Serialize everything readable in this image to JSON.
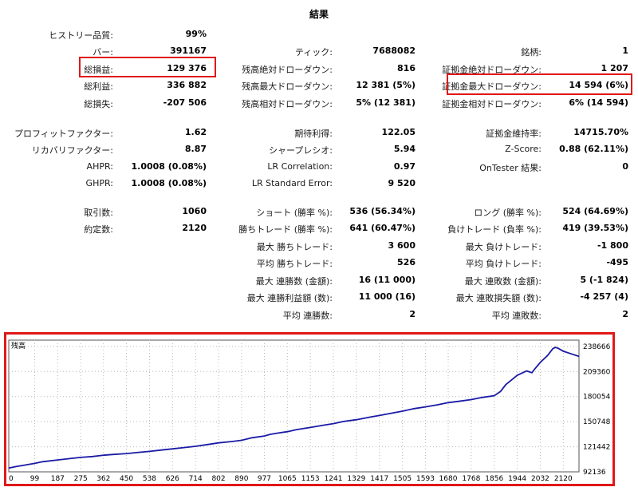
{
  "title": "結果",
  "col1": [
    {
      "key": "history_quality",
      "label": "ヒストリー品質:",
      "value": "99%"
    },
    {
      "key": "bars",
      "label": "バー:",
      "value": "391167"
    },
    {
      "key": "total_net_profit",
      "label": "総損益:",
      "value": "129 376"
    },
    {
      "key": "gross_profit",
      "label": "総利益:",
      "value": "336 882"
    },
    {
      "key": "gross_loss",
      "label": "総損失:",
      "value": "-207 506"
    },
    {
      "key": "profit_factor",
      "label": "プロフィットファクター:",
      "value": "1.62"
    },
    {
      "key": "recovery_factor",
      "label": "リカバリファクター:",
      "value": "8.87"
    },
    {
      "key": "ahpr",
      "label": "AHPR:",
      "value": "1.0008 (0.08%)"
    },
    {
      "key": "ghpr",
      "label": "GHPR:",
      "value": "1.0008 (0.08%)"
    },
    {
      "key": "total_trades",
      "label": "取引数:",
      "value": "1060"
    },
    {
      "key": "total_deals",
      "label": "約定数:",
      "value": "2120"
    }
  ],
  "col2": [
    {
      "key": "ticks",
      "label": "ティック:",
      "value": "7688082"
    },
    {
      "key": "balance_dd_abs",
      "label": "残高絶対ドローダウン:",
      "value": "816"
    },
    {
      "key": "balance_dd_max",
      "label": "残高最大ドローダウン:",
      "value": "12 381 (5%)"
    },
    {
      "key": "balance_dd_rel",
      "label": "残高相対ドローダウン:",
      "value": "5% (12 381)"
    },
    {
      "key": "expected_payoff",
      "label": "期待利得:",
      "value": "122.05"
    },
    {
      "key": "sharpe",
      "label": "シャープレシオ:",
      "value": "5.94"
    },
    {
      "key": "lr_corr",
      "label": "LR Correlation:",
      "value": "0.97"
    },
    {
      "key": "lr_err",
      "label": "LR Standard Error:",
      "value": "9 520"
    },
    {
      "key": "short_trades",
      "label": "ショート (勝率 %):",
      "value": "536 (56.34%)"
    },
    {
      "key": "profit_trades",
      "label": "勝ちトレード (勝率 %):",
      "value": "641 (60.47%)"
    },
    {
      "key": "largest_profit",
      "label": "最大 勝ちトレード:",
      "value": "3 600"
    },
    {
      "key": "avg_profit",
      "label": "平均 勝ちトレード:",
      "value": "526"
    },
    {
      "key": "max_consec_wins",
      "label": "最大 連勝数 (金額):",
      "value": "16 (11 000)"
    },
    {
      "key": "max_consec_profit",
      "label": "最大 連勝利益額 (数):",
      "value": "11 000 (16)"
    },
    {
      "key": "avg_consec_wins",
      "label": "平均 連勝数:",
      "value": "2"
    }
  ],
  "col3": [
    {
      "key": "symbols",
      "label": "銘柄:",
      "value": "1"
    },
    {
      "key": "equity_dd_abs",
      "label": "証拠金絶対ドローダウン:",
      "value": "1 207"
    },
    {
      "key": "equity_dd_max",
      "label": "証拠金最大ドローダウン:",
      "value": "14 594 (6%)"
    },
    {
      "key": "equity_dd_rel",
      "label": "証拠金相対ドローダウン:",
      "value": "6% (14 594)"
    },
    {
      "key": "margin_level",
      "label": "証拠金維持率:",
      "value": "14715.70%"
    },
    {
      "key": "z_score",
      "label": "Z-Score:",
      "value": "0.88 (62.11%)"
    },
    {
      "key": "ontester",
      "label": "OnTester 結果:",
      "value": "0"
    },
    {
      "key": "long_trades",
      "label": "ロング (勝率 %):",
      "value": "524 (64.69%)"
    },
    {
      "key": "loss_trades",
      "label": "負けトレード (負率 %):",
      "value": "419 (39.53%)"
    },
    {
      "key": "largest_loss",
      "label": "最大 負けトレード:",
      "value": "-1 800"
    },
    {
      "key": "avg_loss",
      "label": "平均 負けトレード:",
      "value": "-495"
    },
    {
      "key": "max_consec_losses",
      "label": "最大 連敗数 (金額):",
      "value": "5 (-1 824)"
    },
    {
      "key": "max_consec_loss",
      "label": "最大 連敗損失額 (数):",
      "value": "-4 257 (4)"
    },
    {
      "key": "avg_consec_losses",
      "label": "平均 連敗数:",
      "value": "2"
    }
  ],
  "colors": {
    "highlight": "#e01818",
    "line": "#1a1aa6",
    "grid": "#b8b8b8"
  },
  "chart_data": {
    "type": "line",
    "legend": "残高",
    "series": [
      {
        "name": "残高",
        "x": [
          0,
          30,
          60,
          99,
          130,
          187,
          230,
          275,
          320,
          362,
          400,
          450,
          500,
          538,
          580,
          626,
          670,
          714,
          760,
          802,
          850,
          890,
          930,
          977,
          1000,
          1030,
          1065,
          1100,
          1153,
          1200,
          1241,
          1280,
          1329,
          1380,
          1417,
          1460,
          1505,
          1550,
          1593,
          1640,
          1680,
          1720,
          1768,
          1810,
          1856,
          1880,
          1900,
          1944,
          1980,
          2000,
          2010,
          2032,
          2060,
          2080,
          2090,
          2100,
          2120,
          2150,
          2180
        ],
        "y": [
          96600,
          98500,
          100000,
          102000,
          104000,
          106000,
          107500,
          109000,
          110000,
          111500,
          112500,
          113500,
          115000,
          116000,
          117500,
          119000,
          120500,
          122000,
          124000,
          126000,
          127500,
          129000,
          132000,
          134000,
          136000,
          137500,
          139000,
          141500,
          144000,
          146500,
          148500,
          151000,
          153000,
          156000,
          158000,
          160500,
          163000,
          166000,
          168000,
          170500,
          173000,
          174500,
          176500,
          179000,
          181000,
          186000,
          194000,
          205000,
          210000,
          208000,
          212000,
          220000,
          228000,
          236000,
          237500,
          236500,
          233000,
          230000,
          227000
        ]
      }
    ],
    "xticks": [
      0,
      99,
      187,
      275,
      362,
      450,
      538,
      626,
      714,
      802,
      890,
      977,
      1065,
      1153,
      1241,
      1329,
      1417,
      1505,
      1593,
      1680,
      1768,
      1856,
      1944,
      2032,
      2120
    ],
    "yticks": [
      92136,
      121442,
      150748,
      180054,
      209360,
      238666
    ],
    "xlim": [
      0,
      2180
    ],
    "ylim": [
      92136,
      246000
    ],
    "grid": true
  }
}
